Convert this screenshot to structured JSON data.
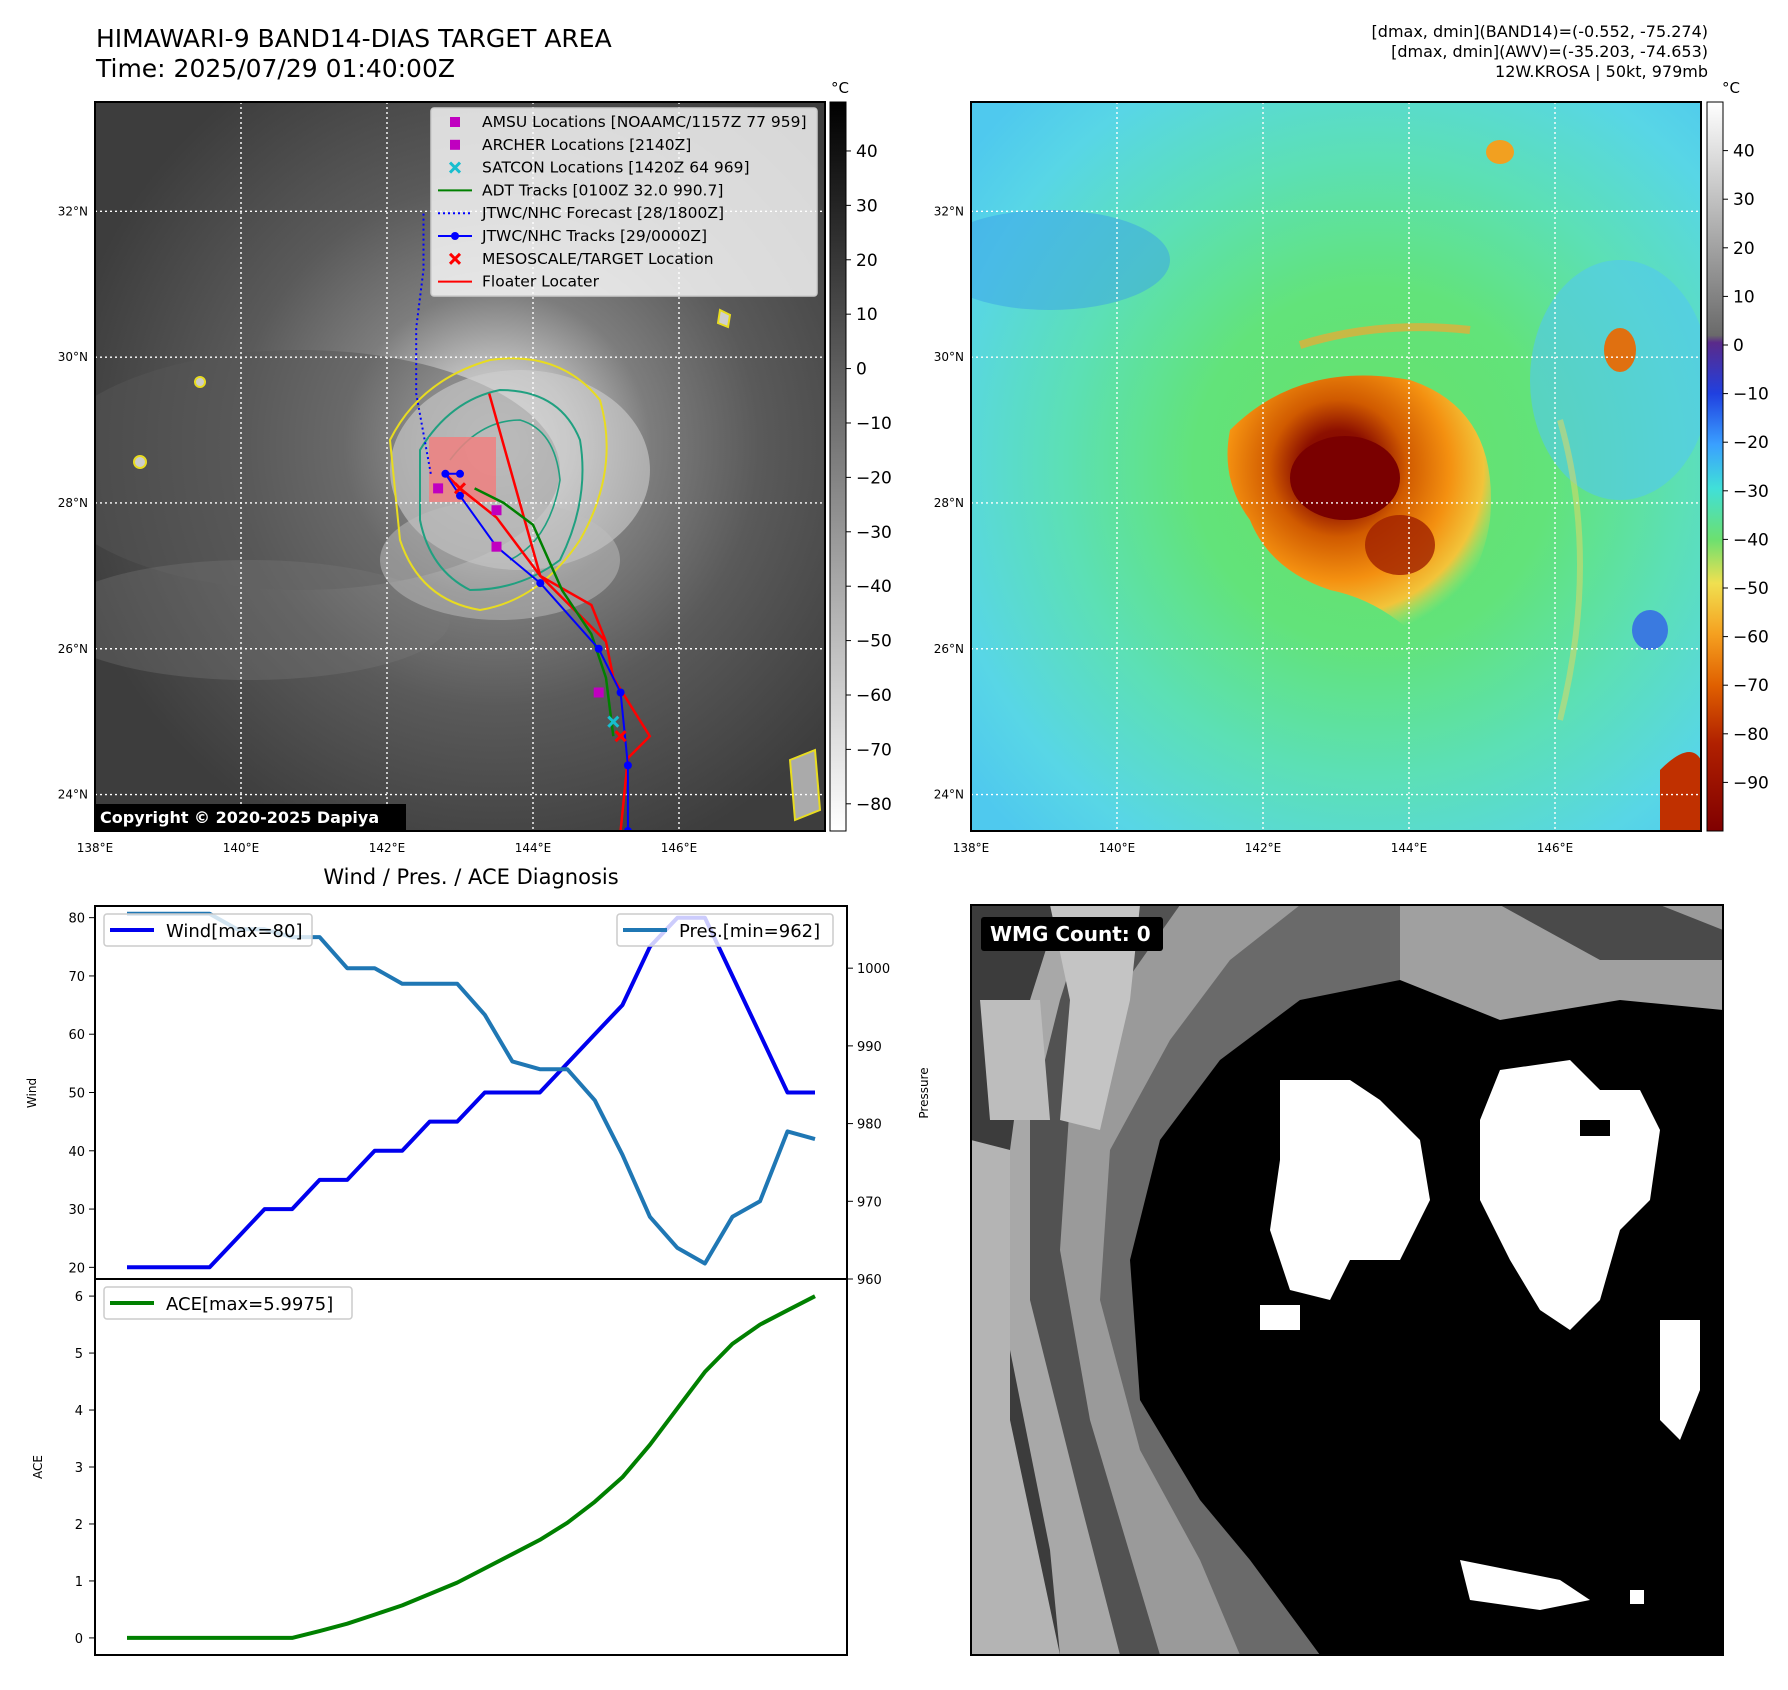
{
  "header": {
    "title_line1": "HIMAWARI-9 BAND14-DIAS TARGET AREA",
    "title_line2": "Time: 2025/07/29 01:40:00Z",
    "info_line1": "[dmax, dmin](BAND14)=(-0.552, -75.274)",
    "info_line2": "[dmax, dmin](AWV)=(-35.203, -74.653)",
    "info_line3": "12W.KROSA | 50kt, 979mb"
  },
  "maps": {
    "lon_ticks": [
      "138°E",
      "140°E",
      "142°E",
      "144°E",
      "146°E"
    ],
    "lat_ticks": [
      "32°N",
      "30°N",
      "28°N",
      "26°N",
      "24°N"
    ],
    "lon_range": [
      138,
      148
    ],
    "lat_range": [
      23.5,
      33.5
    ],
    "copyright": "Copyright © 2020-2025 Dapiya",
    "left_colorbar": {
      "unit": "°C",
      "ticks": [
        "40",
        "30",
        "20",
        "10",
        "0",
        "−10",
        "−20",
        "−30",
        "−40",
        "−50",
        "−60",
        "−70",
        "−80"
      ],
      "values": [
        40,
        30,
        20,
        10,
        0,
        -10,
        -20,
        -30,
        -40,
        -50,
        -60,
        -70,
        -80
      ],
      "range": [
        -85,
        49
      ]
    },
    "right_colorbar": {
      "unit": "°C",
      "ticks": [
        "40",
        "30",
        "20",
        "10",
        "0",
        "−10",
        "−20",
        "−30",
        "−40",
        "−50",
        "−60",
        "−70",
        "−80",
        "−90"
      ],
      "values": [
        40,
        30,
        20,
        10,
        0,
        -10,
        -20,
        -30,
        -40,
        -50,
        -60,
        -70,
        -80,
        -90
      ],
      "range": [
        -100,
        50
      ]
    },
    "legend": [
      {
        "label": "AMSU Locations [NOAAMC/1157Z 77 959]",
        "marker": "square",
        "color": "#c000c0"
      },
      {
        "label": "ARCHER Locations [2140Z]",
        "marker": "square",
        "color": "#c000c0"
      },
      {
        "label": "SATCON Locations [1420Z 64 969]",
        "marker": "x",
        "color": "#17becf"
      },
      {
        "label": "ADT Tracks [0100Z 32.0 990.7]",
        "marker": "line",
        "color": "#008000"
      },
      {
        "label": "JTWC/NHC Forecast [28/1800Z]",
        "marker": "dotted",
        "color": "#0000ff"
      },
      {
        "label": "JTWC/NHC Tracks [29/0000Z]",
        "marker": "line-dot",
        "color": "#0000ff"
      },
      {
        "label": "MESOSCALE/TARGET Location",
        "marker": "x",
        "color": "#ff0000"
      },
      {
        "label": "Floater Locater",
        "marker": "line",
        "color": "#ff0000"
      }
    ],
    "jtwc_track": [
      [
        145.3,
        23.5
      ],
      [
        145.3,
        24.4
      ],
      [
        145.2,
        25.4
      ],
      [
        144.9,
        26.0
      ],
      [
        144.1,
        26.9
      ],
      [
        143.5,
        27.4
      ],
      [
        143.0,
        28.1
      ],
      [
        142.8,
        28.4
      ],
      [
        143.0,
        28.4
      ]
    ],
    "jtwc_forecast": [
      [
        142.6,
        28.4
      ],
      [
        142.4,
        29.5
      ],
      [
        142.4,
        30.4
      ],
      [
        142.5,
        31.2
      ],
      [
        142.5,
        32.0
      ]
    ],
    "adt_track": [
      [
        145.1,
        24.8
      ],
      [
        145.0,
        25.6
      ],
      [
        144.8,
        26.2
      ],
      [
        144.4,
        26.8
      ],
      [
        144.0,
        27.7
      ],
      [
        143.6,
        28.0
      ],
      [
        143.2,
        28.2
      ]
    ],
    "floater_track": [
      [
        145.2,
        23.5
      ],
      [
        145.3,
        24.5
      ],
      [
        145.6,
        24.8
      ],
      [
        145.1,
        25.6
      ],
      [
        145.0,
        26.1
      ],
      [
        144.8,
        26.6
      ],
      [
        144.1,
        27.0
      ],
      [
        143.5,
        27.8
      ],
      [
        143.0,
        28.2
      ],
      [
        142.8,
        28.4
      ]
    ],
    "floater_box": [
      [
        143.4,
        29.5
      ],
      [
        144.1,
        27.0
      ],
      [
        145.0,
        26.1
      ]
    ],
    "amsu_points": [
      [
        143.5,
        27.4
      ],
      [
        144.9,
        25.4
      ]
    ],
    "archer_points": [
      [
        142.7,
        28.2
      ],
      [
        143.5,
        27.9
      ]
    ],
    "satcon_points": [
      [
        145.1,
        25.0
      ]
    ],
    "target_points": [
      [
        143.0,
        28.2
      ],
      [
        145.2,
        24.8
      ]
    ]
  },
  "chart_data": [
    {
      "type": "line",
      "title": "Wind / Pres. / ACE Diagnosis",
      "ylabel": "Wind",
      "y2label": "Pressure",
      "ylim": [
        18,
        82
      ],
      "y2lim": [
        960,
        1008
      ],
      "yticks": [
        20,
        30,
        40,
        50,
        60,
        70,
        80
      ],
      "y2ticks": [
        960,
        970,
        980,
        990,
        1000
      ],
      "series": [
        {
          "name": "Wind[max=80]",
          "color": "#0000ee",
          "axis": "left",
          "values": [
            20,
            20,
            20,
            20,
            25,
            30,
            30,
            35,
            35,
            40,
            40,
            45,
            45,
            50,
            50,
            50,
            55,
            60,
            65,
            75,
            80,
            80,
            70,
            60,
            50,
            50
          ]
        },
        {
          "name": "Pres.[min=962]",
          "color": "#1f77b4",
          "axis": "right",
          "values": [
            1007,
            1007,
            1007,
            1007,
            1005,
            1005,
            1004,
            1004,
            1000,
            1000,
            998,
            998,
            998,
            994,
            988,
            987,
            987,
            983,
            976,
            968,
            964,
            962,
            968,
            970,
            979,
            978
          ]
        }
      ]
    },
    {
      "type": "line",
      "ylabel": "ACE",
      "ylim": [
        -0.3,
        6.3
      ],
      "yticks": [
        0,
        1,
        2,
        3,
        4,
        5,
        6
      ],
      "series": [
        {
          "name": "ACE[max=5.9975]",
          "color": "#008000",
          "axis": "left",
          "values": [
            0,
            0,
            0,
            0,
            0,
            0,
            0,
            0.12,
            0.25,
            0.41,
            0.57,
            0.77,
            0.97,
            1.22,
            1.47,
            1.72,
            2.02,
            2.39,
            2.82,
            3.39,
            4.03,
            4.67,
            5.16,
            5.5,
            5.75,
            5.9975
          ]
        }
      ]
    }
  ],
  "wmg": {
    "label": "WMG Count: 0"
  }
}
